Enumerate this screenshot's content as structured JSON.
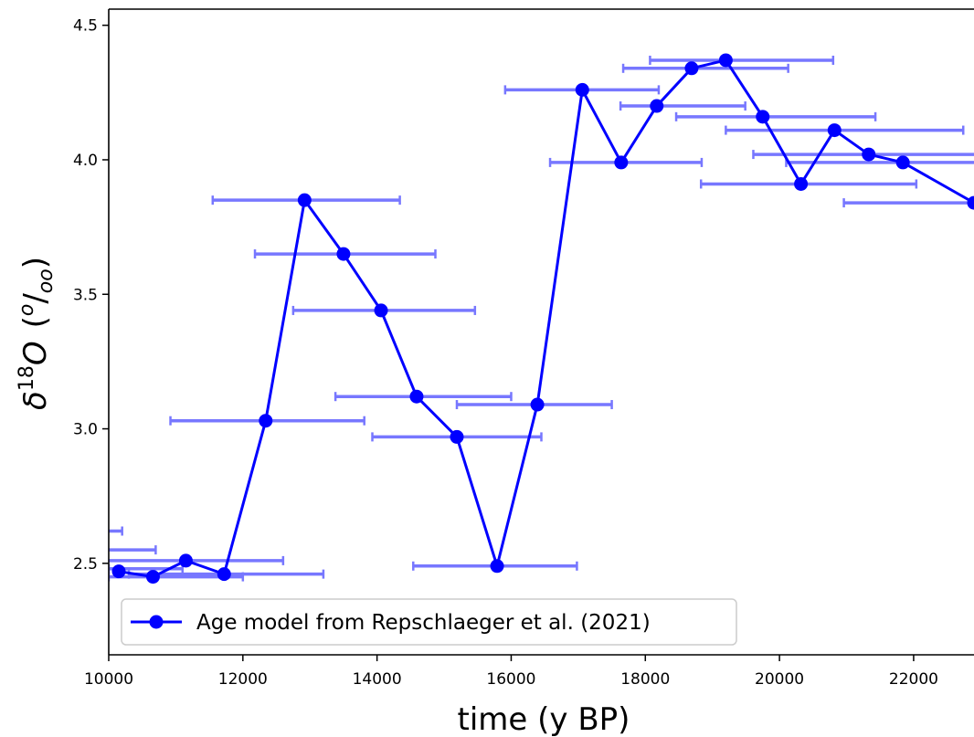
{
  "chart_data": {
    "type": "line",
    "xlabel": "time (y BP)",
    "ylabel": "δ18O (o/oo)",
    "ylabel_parts": {
      "delta": "δ",
      "sup": "18",
      "letter": "O",
      "sup2": "o",
      "slash": "/",
      "sub": "oo"
    },
    "xlim": [
      10000,
      22900
    ],
    "ylim": [
      2.16,
      4.56
    ],
    "x_ticks": [
      10000,
      12000,
      14000,
      16000,
      18000,
      20000,
      22000
    ],
    "x_tick_labels": [
      "10000",
      "12000",
      "14000",
      "16000",
      "18000",
      "20000",
      "22000"
    ],
    "y_ticks": [
      2.5,
      3.0,
      3.5,
      4.0,
      4.5
    ],
    "y_tick_labels": [
      "2.5",
      "3.0",
      "3.5",
      "4.0",
      "4.5"
    ],
    "grid": false,
    "legend_position": "bottom-left",
    "series": [
      {
        "name": "Age model from Repschlaeger et al. (2021)",
        "color": "#0000ff",
        "x": [
          10150,
          10660,
          11150,
          11720,
          12340,
          12920,
          13500,
          14060,
          14590,
          15190,
          15790,
          16390,
          17060,
          17640,
          18170,
          18690,
          19200,
          19750,
          20320,
          20820,
          21330,
          21840,
          22900
        ],
        "y": [
          2.47,
          2.45,
          2.51,
          2.46,
          3.03,
          3.85,
          3.65,
          3.44,
          3.12,
          2.97,
          2.49,
          3.09,
          4.26,
          3.99,
          4.2,
          4.34,
          4.37,
          4.16,
          3.91,
          4.11,
          4.02,
          3.99,
          3.84
        ]
      }
    ],
    "error_bars": {
      "color": "#7777ff",
      "bars": [
        {
          "y": 2.62,
          "x_min": 9600,
          "x_max": 10200
        },
        {
          "y": 2.55,
          "x_min": 9800,
          "x_max": 10700
        },
        {
          "y": 2.51,
          "x_min": 9900,
          "x_max": 12600
        },
        {
          "y": 2.48,
          "x_min": 10000,
          "x_max": 11100
        },
        {
          "y": 2.46,
          "x_min": 10300,
          "x_max": 13200
        },
        {
          "y": 2.45,
          "x_min": 10000,
          "x_max": 12000
        },
        {
          "y": 3.03,
          "x_min": 10920,
          "x_max": 13810
        },
        {
          "y": 3.85,
          "x_min": 11550,
          "x_max": 14340
        },
        {
          "y": 3.65,
          "x_min": 12180,
          "x_max": 14870
        },
        {
          "y": 3.44,
          "x_min": 12750,
          "x_max": 15460
        },
        {
          "y": 3.12,
          "x_min": 13380,
          "x_max": 16000
        },
        {
          "y": 2.97,
          "x_min": 13930,
          "x_max": 16450
        },
        {
          "y": 3.09,
          "x_min": 15190,
          "x_max": 17500
        },
        {
          "y": 2.49,
          "x_min": 14540,
          "x_max": 16980
        },
        {
          "y": 4.26,
          "x_min": 15910,
          "x_max": 18200
        },
        {
          "y": 3.99,
          "x_min": 16580,
          "x_max": 18840
        },
        {
          "y": 4.2,
          "x_min": 17630,
          "x_max": 19490
        },
        {
          "y": 4.34,
          "x_min": 17670,
          "x_max": 20130
        },
        {
          "y": 4.37,
          "x_min": 18070,
          "x_max": 20800
        },
        {
          "y": 4.16,
          "x_min": 18460,
          "x_max": 21430
        },
        {
          "y": 3.91,
          "x_min": 18830,
          "x_max": 22040
        },
        {
          "y": 4.11,
          "x_min": 19200,
          "x_max": 22740
        },
        {
          "y": 4.02,
          "x_min": 19610,
          "x_max": 23200
        },
        {
          "y": 3.99,
          "x_min": 20100,
          "x_max": 23200
        },
        {
          "y": 3.84,
          "x_min": 20960,
          "x_max": 23200
        }
      ]
    }
  }
}
